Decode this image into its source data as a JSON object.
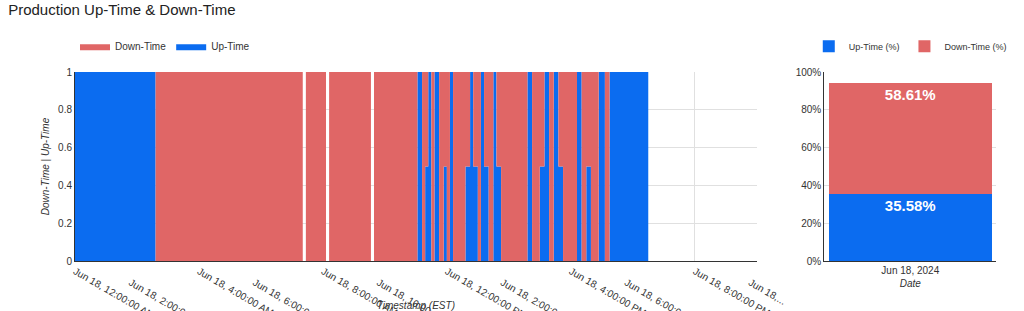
{
  "chart_data": [
    {
      "type": "area",
      "title": "Production Up-Time & Down-Time",
      "x_label": "Timestamp (EST)",
      "y_label": "Down-Time | Up-Time",
      "stacked": true,
      "grid": true,
      "legend": "top-left",
      "x": [
        0,
        2.6,
        7.35,
        7.45,
        8.1,
        8.2,
        9.55,
        9.65,
        11.05,
        11.2,
        11.3,
        11.4,
        11.5,
        11.6,
        11.75,
        11.9,
        12.0,
        12.1,
        12.2,
        12.6,
        12.75,
        12.85,
        13.0,
        13.1,
        13.2,
        13.35,
        13.5,
        13.6,
        13.75,
        14.6,
        14.75,
        15.0,
        15.15,
        15.3,
        15.45,
        15.6,
        15.75,
        16.2,
        16.35,
        16.5,
        16.65,
        16.9,
        17.1,
        17.25,
        18.5
      ],
      "series": [
        {
          "name": "Down-Time",
          "color": "#e06666",
          "values": [
            0,
            1,
            0,
            1,
            0,
            1,
            0,
            1,
            0,
            1,
            0.5,
            0,
            1,
            0,
            1,
            0.5,
            1,
            0,
            1,
            0.5,
            0,
            0.5,
            1,
            0,
            0.5,
            1,
            0,
            0.5,
            1,
            0,
            1,
            0.5,
            0,
            1,
            0,
            0.5,
            1,
            0,
            1,
            0.5,
            1,
            0,
            1,
            0,
            0
          ]
        },
        {
          "name": "Up-Time",
          "color": "#0b6cf0",
          "values": [
            1,
            0,
            0,
            0,
            0,
            0,
            0,
            0,
            1,
            0,
            0.5,
            1,
            0,
            1,
            0,
            0.5,
            0,
            1,
            0,
            0.5,
            1,
            0.5,
            0,
            1,
            0.5,
            0,
            1,
            0.5,
            0,
            1,
            0,
            0.5,
            1,
            0,
            1,
            0.5,
            0,
            1,
            0,
            0.5,
            0,
            1,
            0,
            1,
            1
          ]
        }
      ],
      "xlim": [
        0,
        22
      ],
      "xticks": [
        {
          "value": 0,
          "label": "Jun 18, 12:00:00 AM"
        },
        {
          "value": 2,
          "label": "Jun 18, 2:00:00 AM"
        },
        {
          "value": 4,
          "label": "Jun 18, 4:00:00 AM"
        },
        {
          "value": 6,
          "label": "Jun 18, 6:00:00 AM"
        },
        {
          "value": 8,
          "label": "Jun 18, 8:00:00 AM"
        },
        {
          "value": 10,
          "label": "Jun 18, 10:00:00 AM"
        },
        {
          "value": 12,
          "label": "Jun 18, 12:00:00 PM"
        },
        {
          "value": 14,
          "label": "Jun 18, 2:00:00 PM"
        },
        {
          "value": 16,
          "label": "Jun 18, 4:00:00 PM"
        },
        {
          "value": 18,
          "label": "Jun 18, 6:00:00 PM"
        },
        {
          "value": 20,
          "label": "Jun 18, 8:00:00 PM"
        },
        {
          "value": 22,
          "label": "Jun 18,..."
        }
      ],
      "ylim": [
        0,
        1
      ],
      "yticks": [
        0,
        0.2,
        0.4,
        0.6,
        0.8,
        1
      ]
    },
    {
      "type": "bar",
      "x_label": "Date",
      "stacked": true,
      "grid": true,
      "legend": "top",
      "data_labels": true,
      "categories": [
        "Jun 18, 2024"
      ],
      "series": [
        {
          "name": "Up-Time (%)",
          "color": "#0b6cf0",
          "values": [
            35.58
          ],
          "value_labels": [
            "35.58%"
          ]
        },
        {
          "name": "Down-Time (%)",
          "color": "#e06666",
          "values": [
            58.61
          ],
          "value_labels": [
            "58.61%"
          ]
        }
      ],
      "ylim": [
        0,
        100
      ],
      "yticks": [
        {
          "value": 0,
          "label": "0%"
        },
        {
          "value": 20,
          "label": "20%"
        },
        {
          "value": 40,
          "label": "40%"
        },
        {
          "value": 60,
          "label": "60%"
        },
        {
          "value": 80,
          "label": "80%"
        },
        {
          "value": 100,
          "label": "100%"
        }
      ]
    }
  ]
}
